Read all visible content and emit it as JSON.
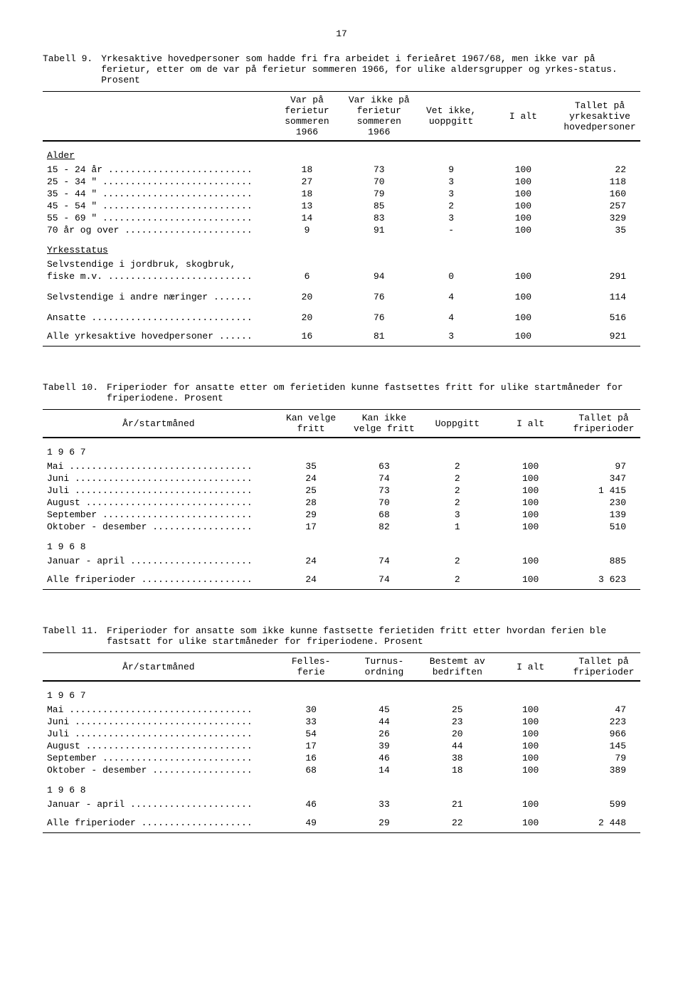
{
  "page_number": "17",
  "table9": {
    "label": "Tabell 9.",
    "caption": "Yrkesaktive hovedpersoner som hadde fri fra arbeidet i ferieåret 1967/68, men ikke var på ferietur, etter om de var på ferietur sommeren 1966, for ulike aldersgrupper og yrkes-status.  Prosent",
    "headers": [
      "",
      "Var på ferietur sommeren 1966",
      "Var ikke på ferietur sommeren 1966",
      "Vet ikke, uoppgitt",
      "I alt",
      "Tallet på yrkesaktive hovedpersoner"
    ],
    "section1": "Alder",
    "rows1": [
      {
        "label": "15 - 24 år",
        "v": [
          "18",
          "73",
          "9",
          "100",
          "22"
        ]
      },
      {
        "label": "25 - 34 \"",
        "v": [
          "27",
          "70",
          "3",
          "100",
          "118"
        ]
      },
      {
        "label": "35 - 44 \"",
        "v": [
          "18",
          "79",
          "3",
          "100",
          "160"
        ]
      },
      {
        "label": "45 - 54 \"",
        "v": [
          "13",
          "85",
          "2",
          "100",
          "257"
        ]
      },
      {
        "label": "55 - 69 \"",
        "v": [
          "14",
          "83",
          "3",
          "100",
          "329"
        ]
      },
      {
        "label": "70 år og over",
        "v": [
          "9",
          "91",
          "-",
          "100",
          "35"
        ]
      }
    ],
    "section2": "Yrkesstatus",
    "rows2": [
      {
        "label": "Selvstendige i jordbruk, skogbruk,",
        "label2": "fiske m.v.",
        "v": [
          "6",
          "94",
          "0",
          "100",
          "291"
        ]
      },
      {
        "label": "Selvstendige i andre næringer",
        "v": [
          "20",
          "76",
          "4",
          "100",
          "114"
        ]
      },
      {
        "label": "Ansatte",
        "v": [
          "20",
          "76",
          "4",
          "100",
          "516"
        ]
      }
    ],
    "total": {
      "label": "Alle yrkesaktive hovedpersoner",
      "v": [
        "16",
        "81",
        "3",
        "100",
        "921"
      ]
    }
  },
  "table10": {
    "label": "Tabell 10.",
    "caption": "Friperioder for ansatte etter om ferietiden kunne fastsettes fritt for ulike startmåneder for friperiodene.  Prosent",
    "headers": [
      "År/startmåned",
      "Kan velge fritt",
      "Kan ikke velge fritt",
      "Uoppgitt",
      "I alt",
      "Tallet på friperioder"
    ],
    "section1": "1 9 6 7",
    "rows1": [
      {
        "label": "Mai",
        "v": [
          "35",
          "63",
          "2",
          "100",
          "97"
        ]
      },
      {
        "label": "Juni",
        "v": [
          "24",
          "74",
          "2",
          "100",
          "347"
        ]
      },
      {
        "label": "Juli",
        "v": [
          "25",
          "73",
          "2",
          "100",
          "1 415"
        ]
      },
      {
        "label": "August",
        "v": [
          "28",
          "70",
          "2",
          "100",
          "230"
        ]
      },
      {
        "label": "September",
        "v": [
          "29",
          "68",
          "3",
          "100",
          "139"
        ]
      },
      {
        "label": "Oktober - desember",
        "v": [
          "17",
          "82",
          "1",
          "100",
          "510"
        ]
      }
    ],
    "section2": "1 9 6 8",
    "rows2": [
      {
        "label": "Januar - april",
        "v": [
          "24",
          "74",
          "2",
          "100",
          "885"
        ]
      }
    ],
    "total": {
      "label": "Alle friperioder",
      "v": [
        "24",
        "74",
        "2",
        "100",
        "3 623"
      ]
    }
  },
  "table11": {
    "label": "Tabell 11.",
    "caption": "Friperioder for ansatte som ikke kunne fastsette ferietiden fritt etter hvordan ferien ble fastsatt for ulike startmåneder for friperiodene.  Prosent",
    "headers": [
      "År/startmåned",
      "Felles-ferie",
      "Turnus-ordning",
      "Bestemt av bedriften",
      "I alt",
      "Tallet på friperioder"
    ],
    "section1": "1 9 6 7",
    "rows1": [
      {
        "label": "Mai",
        "v": [
          "30",
          "45",
          "25",
          "100",
          "47"
        ]
      },
      {
        "label": "Juni",
        "v": [
          "33",
          "44",
          "23",
          "100",
          "223"
        ]
      },
      {
        "label": "Juli",
        "v": [
          "54",
          "26",
          "20",
          "100",
          "966"
        ]
      },
      {
        "label": "August",
        "v": [
          "17",
          "39",
          "44",
          "100",
          "145"
        ]
      },
      {
        "label": "September",
        "v": [
          "16",
          "46",
          "38",
          "100",
          "79"
        ]
      },
      {
        "label": "Oktober - desember",
        "v": [
          "68",
          "14",
          "18",
          "100",
          "389"
        ]
      }
    ],
    "section2": "1 9 6 8",
    "rows2": [
      {
        "label": "Januar - april",
        "v": [
          "46",
          "33",
          "21",
          "100",
          "599"
        ]
      }
    ],
    "total": {
      "label": "Alle friperioder",
      "v": [
        "49",
        "29",
        "22",
        "100",
        "2 448"
      ]
    }
  }
}
